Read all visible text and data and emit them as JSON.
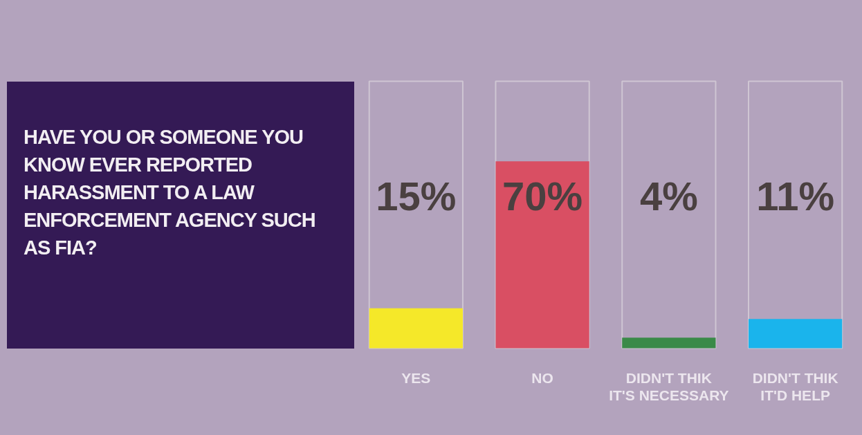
{
  "chart_data": {
    "type": "bar",
    "title": "HAVE YOU OR SOMEONE YOU KNOW EVER REPORTED HARASSMENT TO A LAW ENFORCEMENT AGENCY SUCH AS FIA?",
    "categories": [
      "YES",
      "NO",
      "DIDN'T THIK\nIT'S NECESSARY",
      "DIDN'T THIK\nIT'D HELP"
    ],
    "values": [
      15,
      70,
      4,
      11
    ],
    "colors": [
      "#f5e829",
      "#d94f63",
      "#3a8a48",
      "#1ab4ec"
    ],
    "value_labels": [
      "15%",
      "70%",
      "4%",
      "11%"
    ],
    "ylim": [
      0,
      100
    ],
    "grid": false
  }
}
